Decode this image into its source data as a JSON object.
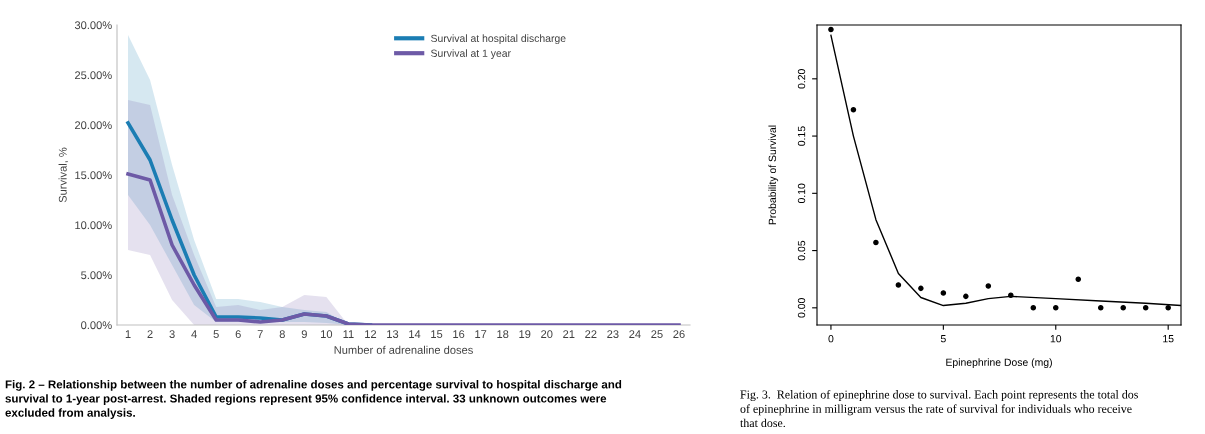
{
  "chart_data": [
    {
      "type": "line",
      "ylabel": "Survival, %",
      "xlabel": "Number of adrenaline doses",
      "categories": [
        "1",
        "2",
        "3",
        "4",
        "5",
        "6",
        "7",
        "8",
        "9",
        "10",
        "11",
        "12",
        "13",
        "14",
        "15",
        "16",
        "17",
        "18",
        "19",
        "20",
        "21",
        "22",
        "23",
        "24",
        "25",
        "26"
      ],
      "series": [
        {
          "name": "Survival at hospital discharge",
          "color": "#1b7db3",
          "values": [
            20.2,
            16.5,
            10.5,
            5.0,
            0.8,
            0.8,
            0.7,
            0.5,
            1.1,
            0.9,
            0.1,
            0,
            null,
            null,
            null,
            null,
            null,
            null,
            null,
            null,
            null,
            null,
            null,
            null,
            null,
            null
          ],
          "lower": [
            13,
            10,
            6,
            2,
            0.3,
            0.3,
            0.3,
            0.3,
            0.3,
            0.2,
            0,
            0,
            null,
            null,
            null,
            null,
            null,
            null,
            null,
            null,
            null,
            null,
            null,
            null,
            null,
            null
          ],
          "upper": [
            29,
            24.5,
            16,
            8.5,
            2.6,
            2.6,
            2.3,
            1.8,
            1.5,
            1.3,
            0,
            0,
            null,
            null,
            null,
            null,
            null,
            null,
            null,
            null,
            null,
            null,
            null,
            null,
            null,
            null
          ]
        },
        {
          "name": "Survival at 1 year",
          "color": "#6d5aa6",
          "values": [
            15.1,
            14.5,
            8,
            4,
            0.5,
            0.5,
            0.3,
            0.5,
            1.1,
            0.9,
            0.1,
            0,
            0,
            0,
            0,
            0,
            0,
            0,
            0,
            0,
            0,
            0,
            0,
            0,
            0,
            0
          ],
          "lower": [
            7.5,
            7,
            2.5,
            0,
            0,
            0,
            0,
            0,
            0,
            0,
            0,
            0,
            0,
            0,
            0,
            0,
            0,
            0,
            0,
            0,
            0,
            0,
            0,
            0,
            0,
            0
          ],
          "upper": [
            22.5,
            22,
            13,
            7,
            1.8,
            2.0,
            1.5,
            1.8,
            3.0,
            2.8,
            0,
            0,
            0,
            0,
            0,
            0,
            0,
            0,
            0,
            0,
            0,
            0,
            0,
            0,
            0,
            0
          ]
        }
      ],
      "ylim": [
        0,
        30
      ],
      "yticks": [
        {
          "value": 0,
          "label": "0.00%"
        },
        {
          "value": 5,
          "label": "5.00%"
        },
        {
          "value": 10,
          "label": "10.00%"
        },
        {
          "value": 15,
          "label": "15.00%"
        },
        {
          "value": 20,
          "label": "20.00%"
        },
        {
          "value": 25,
          "label": "25.00%"
        },
        {
          "value": 30,
          "label": "30.00%"
        }
      ],
      "grid": false,
      "legend": "top right",
      "annotations": [
        "Fig. 2 – Relationship between the number of adrenaline doses and percentage survival to hospital discharge and\nsurvival to 1-year post-arrest. Shaded regions represent 95% confidence interval. 33 unknown outcomes were\nexcluded from analysis."
      ]
    },
    {
      "type": "scatter",
      "xlabel": "Epinephrine Dose (mg)",
      "ylabel": "Probability of Survival",
      "series": [
        {
          "type": "scatter",
          "color": "#000000",
          "marker": "circle",
          "x": [
            0,
            1,
            2,
            3,
            4,
            5,
            6,
            7,
            8,
            9,
            10,
            11,
            12,
            13,
            14,
            15
          ],
          "values": [
            0.243,
            0.173,
            0.057,
            0.02,
            0.017,
            0.013,
            0.01,
            0.019,
            0.011,
            0,
            0,
            0.025,
            0,
            0,
            0,
            0
          ]
        },
        {
          "type": "line",
          "color": "#000000",
          "line_style": "solid",
          "x": [
            0,
            1,
            2,
            3,
            4,
            5,
            6,
            7,
            8,
            10,
            12,
            14,
            15.57
          ],
          "values": [
            0.238,
            0.15,
            0.077,
            0.03,
            0.009,
            0.002,
            0.004,
            0.008,
            0.01,
            0.008,
            0.006,
            0.004,
            0.002
          ]
        }
      ],
      "xlim": [
        -0.62,
        15.57
      ],
      "ylim": [
        -0.015,
        0.247
      ],
      "xticks": [
        0,
        5,
        10,
        15
      ],
      "yticks": [
        {
          "value": 0,
          "label": "0.00"
        },
        {
          "value": 0.05,
          "label": "0.05"
        },
        {
          "value": 0.1,
          "label": "0.10"
        },
        {
          "value": 0.15,
          "label": "0.15"
        },
        {
          "value": 0.2,
          "label": "0.20"
        }
      ],
      "grid": false,
      "annotations": [
        "Fig. 3.  Relation of epinephrine dose to survival. Each point represents the total dos\nof epinephrine in milligram versus the rate of survival for individuals who receive\nthat dose."
      ]
    }
  ]
}
